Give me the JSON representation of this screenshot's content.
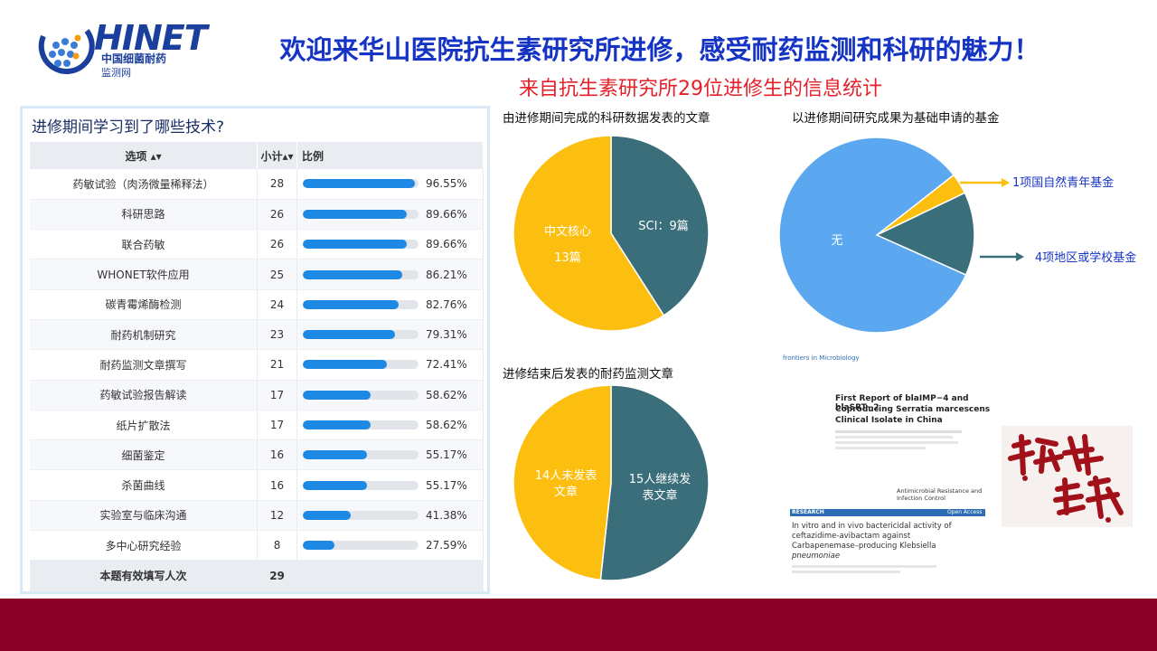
{
  "header": {
    "logo_text": "HINET",
    "logo_sub1": "中国细菌耐药",
    "logo_sub2": "监测网",
    "title": "欢迎来华山医院抗生素研究所进修，感受耐药监测和科研的魅力！",
    "subtitle": "来自抗生素研究所29位进修生的信息统计"
  },
  "survey": {
    "question": "进修期间学习到了哪些技术?",
    "columns": {
      "option": "选项 ▴▾",
      "count": "小计▴▾",
      "ratio": "比例"
    },
    "rows": [
      {
        "option": "药敏试验（肉汤微量稀释法）",
        "count": "28",
        "pct": "96.55%",
        "value": 96.55
      },
      {
        "option": "科研思路",
        "count": "26",
        "pct": "89.66%",
        "value": 89.66
      },
      {
        "option": "联合药敏",
        "count": "26",
        "pct": "89.66%",
        "value": 89.66
      },
      {
        "option": "WHONET软件应用",
        "count": "25",
        "pct": "86.21%",
        "value": 86.21
      },
      {
        "option": "碳青霉烯酶检测",
        "count": "24",
        "pct": "82.76%",
        "value": 82.76
      },
      {
        "option": "耐药机制研究",
        "count": "23",
        "pct": "79.31%",
        "value": 79.31
      },
      {
        "option": "耐药监测文章撰写",
        "count": "21",
        "pct": "72.41%",
        "value": 72.41
      },
      {
        "option": "药敏试验报告解读",
        "count": "17",
        "pct": "58.62%",
        "value": 58.62
      },
      {
        "option": "纸片扩散法",
        "count": "17",
        "pct": "58.62%",
        "value": 58.62
      },
      {
        "option": "细菌鉴定",
        "count": "16",
        "pct": "55.17%",
        "value": 55.17
      },
      {
        "option": "杀菌曲线",
        "count": "16",
        "pct": "55.17%",
        "value": 55.17
      },
      {
        "option": "实验室与临床沟通",
        "count": "12",
        "pct": "41.38%",
        "value": 41.38
      },
      {
        "option": "多中心研究经验",
        "count": "8",
        "pct": "27.59%",
        "value": 27.59
      }
    ],
    "total_label": "本题有效填写人次",
    "total_value": "29"
  },
  "chart_data": [
    {
      "type": "bar",
      "title": "进修期间学习到了哪些技术?",
      "categories": [
        "药敏试验（肉汤微量稀释法）",
        "科研思路",
        "联合药敏",
        "WHONET软件应用",
        "碳青霉烯酶检测",
        "耐药机制研究",
        "耐药监测文章撰写",
        "药敏试验报告解读",
        "纸片扩散法",
        "细菌鉴定",
        "杀菌曲线",
        "实验室与临床沟通",
        "多中心研究经验"
      ],
      "values": [
        96.55,
        89.66,
        89.66,
        86.21,
        82.76,
        79.31,
        72.41,
        58.62,
        58.62,
        55.17,
        55.17,
        41.38,
        27.59
      ],
      "counts": [
        28,
        26,
        26,
        25,
        24,
        23,
        21,
        17,
        17,
        16,
        16,
        12,
        8
      ],
      "total": 29
    },
    {
      "type": "pie",
      "title": "由进修期间完成的科研数据发表的文章",
      "slices": [
        {
          "label": "SCI：9篇",
          "value": 9,
          "color": "#3b6e7b"
        },
        {
          "label": "中文核心 13篇",
          "value": 13,
          "color": "#fdbf0f"
        }
      ]
    },
    {
      "type": "pie",
      "title": "以进修期间研究成果为基础申请的基金",
      "slices": [
        {
          "label": "1项国自然青年基金",
          "value": 1,
          "color": "#fdbf0f"
        },
        {
          "label": "4项地区或学校基金",
          "value": 4,
          "color": "#3b6e7b"
        },
        {
          "label": "无",
          "value": 24,
          "color": "#5ba8f0"
        }
      ]
    },
    {
      "type": "pie",
      "title": "进修结束后发表的耐药监测文章",
      "slices": [
        {
          "label": "15人继续发表文章",
          "value": 15,
          "color": "#3b6e7b"
        },
        {
          "label": "14人未发表文章",
          "value": 14,
          "color": "#fdbf0f"
        }
      ]
    }
  ],
  "pie_labels": {
    "c1_sci": "SCI：9篇",
    "c1_cn_line1": "中文核心",
    "c1_cn_line2": "13篇",
    "c2_none": "无",
    "c2_nsfc": "1项国自然青年基金",
    "c2_local": "4项地区或学校基金",
    "c3_yes_line1": "15人继续发",
    "c3_yes_line2": "表文章",
    "c3_no_line1": "14人未发表",
    "c3_no_line2": "文章"
  },
  "papers": {
    "p1_journal": "frontiers in Microbiology",
    "p1_title1": "First Report of blaIMP−4 and blaSRT−2",
    "p1_title2": "Coproducing Serratia marcescens",
    "p1_title3": "Clinical Isolate in China",
    "p2_journal": "Antimicrobial Resistance and Infection Control",
    "p2_tag": "RESEARCH",
    "p2_access": "Open Access",
    "p2_title1": "In vitro and in vivo bactericidal activity of",
    "p2_title2": "ceftazidime-avibactam against",
    "p2_title3": "Carbapenemase–producing Klebsiella",
    "p2_title4": "pneumoniae"
  },
  "colors": {
    "teal": "#3b6e7b",
    "gold": "#fdbf0f",
    "sky": "#5ba8f0",
    "bar_blue": "#1e88e5",
    "footer": "#8b0026"
  }
}
